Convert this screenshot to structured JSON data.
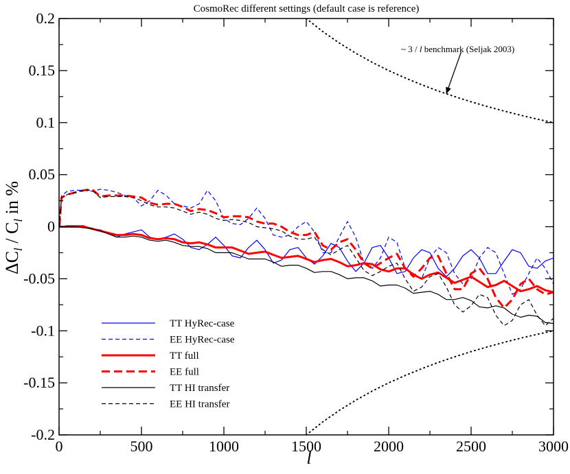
{
  "chart_data": {
    "type": "line",
    "title": "CosmoRec different settings (default case is reference)",
    "xlabel": "l",
    "ylabel_parts": [
      "ΔC",
      "l",
      " / C",
      "l",
      "  in %"
    ],
    "xlim": [
      0,
      3000
    ],
    "ylim": [
      -0.2,
      0.2
    ],
    "x_ticks": [
      "0",
      "500",
      "1000",
      "1500",
      "2000",
      "2500",
      "3000"
    ],
    "x_tick_values": [
      0,
      500,
      1000,
      1500,
      2000,
      2500,
      3000
    ],
    "y_ticks": [
      "-0.2",
      "-0.15",
      "-0.1",
      "-0.05",
      "0",
      "0.05",
      "0.1",
      "0.15",
      "0.2"
    ],
    "y_tick_values": [
      -0.2,
      -0.15,
      -0.1,
      -0.05,
      0,
      0.05,
      0.1,
      0.15,
      0.2
    ],
    "grid": false,
    "legend_position": "bottom-left",
    "annotation": {
      "text_parts": [
        "~ 3 / ",
        "l",
        "  benchmark (Seljak 2003)"
      ],
      "arrow_from": [
        2440,
        0.168
      ],
      "arrow_to": [
        2350,
        0.128
      ]
    },
    "series": [
      {
        "name": "TT HyRec-case",
        "color": "#0000ff",
        "width": 1.2,
        "dash": "solid",
        "x": [
          2,
          50,
          100,
          150,
          200,
          250,
          300,
          350,
          400,
          450,
          500,
          550,
          600,
          650,
          700,
          750,
          800,
          850,
          900,
          950,
          1000,
          1050,
          1100,
          1150,
          1200,
          1250,
          1300,
          1350,
          1400,
          1450,
          1500,
          1550,
          1600,
          1650,
          1700,
          1750,
          1800,
          1850,
          1900,
          1950,
          2000,
          2050,
          2100,
          2150,
          2200,
          2250,
          2300,
          2350,
          2400,
          2450,
          2500,
          2550,
          2600,
          2650,
          2700,
          2750,
          2800,
          2850,
          2900,
          2950,
          3000
        ],
        "y": [
          0,
          0.001,
          0.001,
          0.001,
          -0.002,
          -0.003,
          -0.006,
          -0.01,
          -0.007,
          -0.005,
          -0.003,
          -0.01,
          -0.012,
          -0.01,
          -0.007,
          -0.012,
          -0.02,
          -0.022,
          -0.017,
          -0.01,
          -0.018,
          -0.028,
          -0.03,
          -0.02,
          -0.013,
          -0.022,
          -0.035,
          -0.032,
          -0.022,
          -0.02,
          -0.03,
          -0.036,
          -0.028,
          -0.016,
          -0.02,
          -0.033,
          -0.043,
          -0.035,
          -0.02,
          -0.018,
          -0.03,
          -0.045,
          -0.043,
          -0.03,
          -0.022,
          -0.025,
          -0.04,
          -0.048,
          -0.04,
          -0.028,
          -0.022,
          -0.03,
          -0.045,
          -0.045,
          -0.033,
          -0.022,
          -0.025,
          -0.038,
          -0.04,
          -0.033,
          -0.03
        ]
      },
      {
        "name": "EE HyRec-case",
        "color": "#0000ff",
        "width": 1.2,
        "dash": "6,4",
        "x": [
          2,
          15,
          50,
          100,
          150,
          200,
          250,
          300,
          350,
          400,
          450,
          500,
          550,
          600,
          650,
          700,
          750,
          800,
          850,
          900,
          950,
          1000,
          1050,
          1100,
          1150,
          1200,
          1250,
          1300,
          1350,
          1400,
          1450,
          1500,
          1550,
          1600,
          1650,
          1700,
          1750,
          1800,
          1850,
          1900,
          1950,
          2000,
          2050,
          2100,
          2150,
          2200,
          2250,
          2300,
          2350,
          2400,
          2450,
          2500,
          2550,
          2600,
          2650,
          2700,
          2750,
          2800,
          2850,
          2900,
          2950,
          3000
        ],
        "y": [
          0,
          0.03,
          0.034,
          0.035,
          0.035,
          0.034,
          0.036,
          0.035,
          0.033,
          0.03,
          0.028,
          0.02,
          0.025,
          0.035,
          0.03,
          0.022,
          0.02,
          0.018,
          0.022,
          0.035,
          0.025,
          0.008,
          0.003,
          0.002,
          0.008,
          0.018,
          0.008,
          -0.008,
          -0.01,
          -0.008,
          0.0,
          0.005,
          -0.005,
          -0.025,
          -0.025,
          -0.01,
          0.005,
          -0.01,
          -0.035,
          -0.04,
          -0.03,
          -0.01,
          -0.015,
          -0.04,
          -0.045,
          -0.05,
          -0.03,
          -0.02,
          -0.025,
          -0.045,
          -0.055,
          -0.05,
          -0.03,
          -0.02,
          -0.025,
          -0.045,
          -0.065,
          -0.06,
          -0.045,
          -0.03,
          -0.04,
          -0.055
        ]
      },
      {
        "name": "TT full",
        "color": "#ff0000",
        "width": 3,
        "dash": "solid",
        "x": [
          2,
          50,
          100,
          150,
          200,
          250,
          300,
          350,
          400,
          450,
          500,
          550,
          600,
          650,
          700,
          750,
          800,
          850,
          900,
          950,
          1000,
          1050,
          1100,
          1150,
          1200,
          1250,
          1300,
          1350,
          1400,
          1450,
          1500,
          1550,
          1600,
          1650,
          1700,
          1750,
          1800,
          1850,
          1900,
          1950,
          2000,
          2050,
          2100,
          2150,
          2200,
          2250,
          2300,
          2350,
          2400,
          2450,
          2500,
          2550,
          2600,
          2650,
          2700,
          2750,
          2800,
          2850,
          2900,
          2950,
          3000
        ],
        "y": [
          0,
          0.0,
          0.0,
          0.0,
          -0.002,
          -0.004,
          -0.006,
          -0.008,
          -0.008,
          -0.007,
          -0.008,
          -0.011,
          -0.012,
          -0.011,
          -0.012,
          -0.015,
          -0.016,
          -0.015,
          -0.017,
          -0.02,
          -0.02,
          -0.02,
          -0.023,
          -0.026,
          -0.025,
          -0.024,
          -0.027,
          -0.03,
          -0.029,
          -0.028,
          -0.031,
          -0.034,
          -0.032,
          -0.031,
          -0.034,
          -0.038,
          -0.037,
          -0.035,
          -0.036,
          -0.041,
          -0.043,
          -0.04,
          -0.04,
          -0.046,
          -0.05,
          -0.046,
          -0.044,
          -0.049,
          -0.054,
          -0.051,
          -0.048,
          -0.053,
          -0.058,
          -0.056,
          -0.052,
          -0.057,
          -0.062,
          -0.06,
          -0.057,
          -0.061,
          -0.063
        ]
      },
      {
        "name": "EE full",
        "color": "#ff0000",
        "width": 3,
        "dash": "12,6",
        "x": [
          2,
          15,
          50,
          100,
          150,
          200,
          250,
          300,
          350,
          400,
          450,
          500,
          550,
          600,
          650,
          700,
          750,
          800,
          850,
          900,
          950,
          1000,
          1050,
          1100,
          1150,
          1200,
          1250,
          1300,
          1350,
          1400,
          1450,
          1500,
          1550,
          1600,
          1650,
          1700,
          1750,
          1800,
          1850,
          1900,
          1950,
          2000,
          2050,
          2100,
          2150,
          2200,
          2250,
          2300,
          2350,
          2400,
          2450,
          2500,
          2550,
          2600,
          2650,
          2700,
          2750,
          2800,
          2850,
          2900,
          2950,
          3000
        ],
        "y": [
          0,
          0.028,
          0.031,
          0.033,
          0.035,
          0.036,
          0.029,
          0.03,
          0.03,
          0.03,
          0.029,
          0.028,
          0.023,
          0.021,
          0.022,
          0.022,
          0.019,
          0.015,
          0.017,
          0.016,
          0.013,
          0.009,
          0.01,
          0.01,
          0.009,
          0.005,
          0.003,
          0.003,
          0.0,
          -0.005,
          -0.008,
          -0.008,
          -0.005,
          -0.018,
          -0.022,
          -0.015,
          -0.012,
          -0.022,
          -0.035,
          -0.04,
          -0.035,
          -0.03,
          -0.026,
          -0.04,
          -0.048,
          -0.04,
          -0.03,
          -0.028,
          -0.045,
          -0.06,
          -0.06,
          -0.045,
          -0.04,
          -0.05,
          -0.068,
          -0.078,
          -0.07,
          -0.055,
          -0.05,
          -0.06,
          -0.065,
          -0.063
        ]
      },
      {
        "name": "TT HI transfer",
        "color": "#000000",
        "width": 1.2,
        "dash": "solid",
        "x": [
          2,
          50,
          100,
          150,
          200,
          250,
          300,
          350,
          400,
          450,
          500,
          550,
          600,
          650,
          700,
          750,
          800,
          850,
          900,
          950,
          1000,
          1050,
          1100,
          1150,
          1200,
          1250,
          1300,
          1350,
          1400,
          1450,
          1500,
          1550,
          1600,
          1650,
          1700,
          1750,
          1800,
          1850,
          1900,
          1950,
          2000,
          2050,
          2100,
          2150,
          2200,
          2250,
          2300,
          2350,
          2400,
          2450,
          2500,
          2550,
          2600,
          2650,
          2700,
          2750,
          2800,
          2850,
          2900,
          2950,
          3000
        ],
        "y": [
          0,
          0.0,
          0.0,
          -0.001,
          -0.002,
          -0.004,
          -0.007,
          -0.01,
          -0.01,
          -0.009,
          -0.01,
          -0.013,
          -0.014,
          -0.013,
          -0.015,
          -0.018,
          -0.019,
          -0.019,
          -0.021,
          -0.025,
          -0.025,
          -0.025,
          -0.028,
          -0.031,
          -0.031,
          -0.031,
          -0.034,
          -0.038,
          -0.037,
          -0.037,
          -0.04,
          -0.044,
          -0.043,
          -0.043,
          -0.046,
          -0.05,
          -0.049,
          -0.049,
          -0.052,
          -0.057,
          -0.056,
          -0.056,
          -0.059,
          -0.064,
          -0.063,
          -0.062,
          -0.065,
          -0.07,
          -0.07,
          -0.068,
          -0.071,
          -0.077,
          -0.078,
          -0.076,
          -0.078,
          -0.084,
          -0.087,
          -0.085,
          -0.086,
          -0.092,
          -0.093
        ]
      },
      {
        "name": "EE HI transfer",
        "color": "#000000",
        "width": 1.2,
        "dash": "6,4",
        "x": [
          2,
          15,
          50,
          100,
          150,
          200,
          250,
          300,
          350,
          400,
          450,
          500,
          550,
          600,
          650,
          700,
          750,
          800,
          850,
          900,
          950,
          1000,
          1050,
          1100,
          1150,
          1200,
          1250,
          1300,
          1350,
          1400,
          1450,
          1500,
          1550,
          1600,
          1650,
          1700,
          1750,
          1800,
          1850,
          1900,
          1950,
          2000,
          2050,
          2100,
          2150,
          2200,
          2250,
          2300,
          2350,
          2400,
          2450,
          2500,
          2550,
          2600,
          2650,
          2700,
          2750,
          2800,
          2850,
          2900,
          2950,
          3000
        ],
        "y": [
          0,
          0.028,
          0.031,
          0.033,
          0.035,
          0.035,
          0.028,
          0.029,
          0.029,
          0.029,
          0.028,
          0.025,
          0.021,
          0.019,
          0.019,
          0.018,
          0.015,
          0.012,
          0.014,
          0.012,
          0.008,
          0.006,
          0.007,
          0.006,
          0.004,
          0.0,
          -0.001,
          -0.002,
          -0.004,
          -0.009,
          -0.012,
          -0.012,
          -0.01,
          -0.022,
          -0.027,
          -0.022,
          -0.018,
          -0.03,
          -0.042,
          -0.047,
          -0.043,
          -0.038,
          -0.035,
          -0.05,
          -0.062,
          -0.058,
          -0.048,
          -0.045,
          -0.058,
          -0.075,
          -0.082,
          -0.076,
          -0.065,
          -0.068,
          -0.085,
          -0.095,
          -0.09,
          -0.075,
          -0.07,
          -0.085,
          -0.095,
          -0.088
        ]
      },
      {
        "name": "~3/l benchmark (upper)",
        "color": "#000000",
        "width": 2,
        "dash": "1,5",
        "legend": false,
        "x": [
          1500,
          1600,
          1700,
          1800,
          1900,
          2000,
          2100,
          2200,
          2300,
          2400,
          2500,
          2600,
          2700,
          2800,
          2900,
          3000
        ],
        "y": [
          0.2,
          0.1875,
          0.1765,
          0.1667,
          0.1579,
          0.15,
          0.1429,
          0.1364,
          0.1304,
          0.125,
          0.12,
          0.1154,
          0.1111,
          0.1071,
          0.1034,
          0.1
        ]
      },
      {
        "name": "~3/l benchmark (lower)",
        "color": "#000000",
        "width": 2,
        "dash": "1,5",
        "legend": false,
        "x": [
          1500,
          1600,
          1700,
          1800,
          1900,
          2000,
          2100,
          2200,
          2300,
          2400,
          2500,
          2600,
          2700,
          2800,
          2900,
          3000
        ],
        "y": [
          -0.2,
          -0.1875,
          -0.1765,
          -0.1667,
          -0.1579,
          -0.15,
          -0.1429,
          -0.1364,
          -0.1304,
          -0.125,
          -0.12,
          -0.1154,
          -0.1111,
          -0.1071,
          -0.1034,
          -0.1
        ]
      }
    ]
  }
}
